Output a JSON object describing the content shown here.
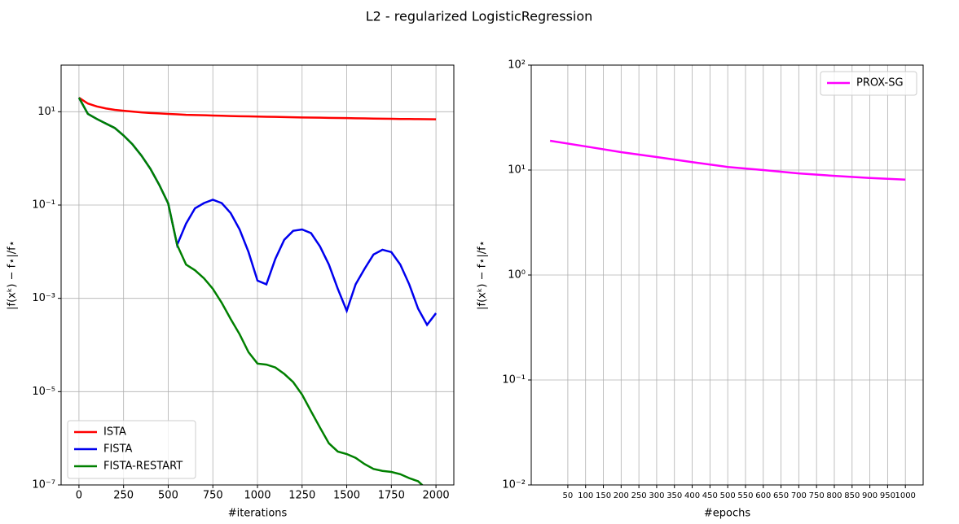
{
  "title": "L2 - regularized LogisticRegression",
  "chart_data": [
    {
      "type": "line",
      "xlabel": "#iterations",
      "ylabel": "|f(xᵏ) − f⋆|/f⋆",
      "yscale": "log",
      "grid": true,
      "legend": "lower left",
      "xlim": [
        -100,
        2100
      ],
      "xticks": [
        0,
        250,
        500,
        750,
        1000,
        1250,
        1500,
        1750,
        2000
      ],
      "ylim": [
        1e-07,
        100
      ],
      "yticks": [
        {
          "value": 1e-07,
          "label": "10⁻⁷"
        },
        {
          "value": 1e-05,
          "label": "10⁻⁵"
        },
        {
          "value": 0.001,
          "label": "10⁻³"
        },
        {
          "value": 0.1,
          "label": "10⁻¹"
        },
        {
          "value": 10,
          "label": "10¹"
        }
      ],
      "x": [
        0,
        50,
        100,
        150,
        200,
        250,
        300,
        350,
        400,
        450,
        500,
        550,
        600,
        650,
        700,
        750,
        800,
        850,
        900,
        950,
        1000,
        1050,
        1100,
        1150,
        1200,
        1250,
        1300,
        1350,
        1400,
        1450,
        1500,
        1550,
        1600,
        1650,
        1700,
        1750,
        1800,
        1850,
        1900,
        1950,
        2000
      ],
      "series": [
        {
          "name": "ISTA",
          "color": "#ff0000",
          "values": [
            20,
            15,
            13,
            11.8,
            11,
            10.5,
            10.1,
            9.7,
            9.4,
            9.2,
            9,
            8.8,
            8.6,
            8.5,
            8.4,
            8.3,
            8.2,
            8.1,
            8,
            7.95,
            7.9,
            7.8,
            7.75,
            7.7,
            7.6,
            7.55,
            7.5,
            7.45,
            7.4,
            7.35,
            7.3,
            7.25,
            7.2,
            7.15,
            7.1,
            7.05,
            7.0,
            6.98,
            6.95,
            6.92,
            6.9
          ]
        },
        {
          "name": "FISTA",
          "color": "#0000ee",
          "values": [
            20,
            9,
            7,
            5.6,
            4.5,
            3.1,
            2.0,
            1.15,
            0.6,
            0.27,
            0.108,
            0.014,
            0.04,
            0.085,
            0.11,
            0.13,
            0.11,
            0.067,
            0.03,
            0.0098,
            0.0024,
            0.002,
            0.007,
            0.018,
            0.028,
            0.03,
            0.025,
            0.013,
            0.0053,
            0.0016,
            0.00054,
            0.002,
            0.0043,
            0.0087,
            0.011,
            0.0098,
            0.0053,
            0.002,
            0.0006,
            0.00027,
            0.00048
          ]
        },
        {
          "name": "FISTA-RESTART",
          "color": "#008000",
          "values": [
            20,
            9,
            7,
            5.6,
            4.5,
            3.1,
            2.0,
            1.15,
            0.6,
            0.27,
            0.108,
            0.014,
            0.0053,
            0.004,
            0.0027,
            0.0016,
            0.0008,
            0.00036,
            0.00017,
            7e-05,
            4e-05,
            3.8e-05,
            3.3e-05,
            2.4e-05,
            1.6e-05,
            8.6e-06,
            3.8e-06,
            1.7e-06,
            7.8e-07,
            5.2e-07,
            4.6e-07,
            3.8e-07,
            2.8e-07,
            2.2e-07,
            2e-07,
            1.9e-07,
            1.7e-07,
            1.4e-07,
            1.2e-07,
            8e-08,
            null
          ]
        }
      ]
    },
    {
      "type": "line",
      "xlabel": "#epochs",
      "ylabel": "|f(xᵏ) − f⋆|/f⋆",
      "yscale": "log",
      "grid": true,
      "legend": "upper right",
      "xlim": [
        -53,
        1050
      ],
      "xticks": [
        50,
        100,
        150,
        200,
        250,
        300,
        350,
        400,
        450,
        500,
        550,
        600,
        650,
        700,
        750,
        800,
        850,
        900,
        950,
        1000
      ],
      "ylim": [
        0.01,
        100
      ],
      "yticks": [
        {
          "value": 0.01,
          "label": "10⁻²"
        },
        {
          "value": 0.1,
          "label": "10⁻¹"
        },
        {
          "value": 1,
          "label": "10⁰"
        },
        {
          "value": 10,
          "label": "10¹"
        },
        {
          "value": 100,
          "label": "10²"
        }
      ],
      "x": [
        0,
        100,
        200,
        300,
        400,
        500,
        600,
        700,
        800,
        900,
        1000
      ],
      "series": [
        {
          "name": "PROX-SG",
          "color": "#ff00ff",
          "values": [
            19,
            16.8,
            14.8,
            13.3,
            11.9,
            10.7,
            10,
            9.3,
            8.8,
            8.4,
            8.1
          ]
        }
      ]
    }
  ]
}
